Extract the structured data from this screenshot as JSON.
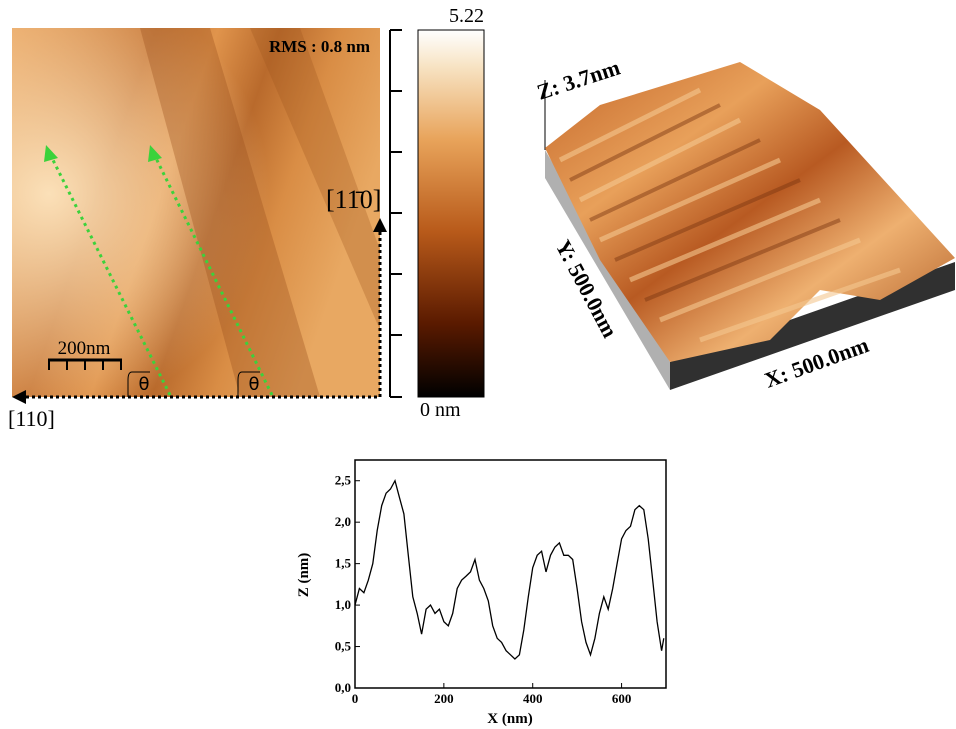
{
  "afm_image": {
    "rms": "RMS : 0.8 nm",
    "scale_bar": "200nm",
    "angle_labels": [
      "θ",
      "θ"
    ],
    "direction_horizontal": "[110]",
    "direction_vertical": "[11̄0]"
  },
  "colorbar": {
    "max_label": "5.22",
    "min_label": "0 nm"
  },
  "surface_3d": {
    "z_label": "Z: 3.7nm",
    "y_label": "Y: 500.0nm",
    "x_label": "X: 500.0nm"
  },
  "chart_data": {
    "type": "line",
    "x_label": "X (nm)",
    "y_label": "Z (nm)",
    "color": "#000000",
    "x": [
      0,
      10,
      20,
      30,
      40,
      50,
      60,
      70,
      80,
      90,
      100,
      110,
      120,
      130,
      140,
      150,
      160,
      170,
      180,
      190,
      200,
      210,
      220,
      230,
      240,
      250,
      260,
      270,
      280,
      290,
      300,
      310,
      320,
      330,
      340,
      350,
      360,
      370,
      380,
      390,
      400,
      410,
      420,
      430,
      440,
      450,
      460,
      470,
      480,
      490,
      500,
      510,
      520,
      530,
      540,
      550,
      560,
      570,
      580,
      590,
      600,
      610,
      620,
      630,
      640,
      650,
      660,
      670,
      680,
      690,
      695
    ],
    "values": [
      1.0,
      1.2,
      1.15,
      1.3,
      1.5,
      1.9,
      2.2,
      2.35,
      2.4,
      2.5,
      2.3,
      2.1,
      1.6,
      1.1,
      0.9,
      0.65,
      0.95,
      1.0,
      0.9,
      0.95,
      0.8,
      0.75,
      0.9,
      1.2,
      1.3,
      1.35,
      1.4,
      1.55,
      1.3,
      1.2,
      1.05,
      0.75,
      0.6,
      0.55,
      0.45,
      0.4,
      0.35,
      0.4,
      0.7,
      1.1,
      1.45,
      1.6,
      1.65,
      1.4,
      1.6,
      1.7,
      1.75,
      1.6,
      1.6,
      1.55,
      1.2,
      0.8,
      0.55,
      0.4,
      0.6,
      0.9,
      1.1,
      0.95,
      1.2,
      1.5,
      1.8,
      1.9,
      1.95,
      2.15,
      2.2,
      2.15,
      1.8,
      1.3,
      0.8,
      0.45,
      0.6
    ],
    "xlim": [
      0,
      700
    ],
    "xticks": [
      0,
      200,
      400,
      600
    ],
    "ylim": [
      0,
      2.75
    ],
    "yticks": [
      {
        "value": 0,
        "label": "0,0"
      },
      {
        "value": 0.5,
        "label": "0,5"
      },
      {
        "value": 1.0,
        "label": "1,0"
      },
      {
        "value": 1.5,
        "label": "1,5"
      },
      {
        "value": 2.0,
        "label": "2,0"
      },
      {
        "value": 2.5,
        "label": "2,5"
      }
    ]
  }
}
